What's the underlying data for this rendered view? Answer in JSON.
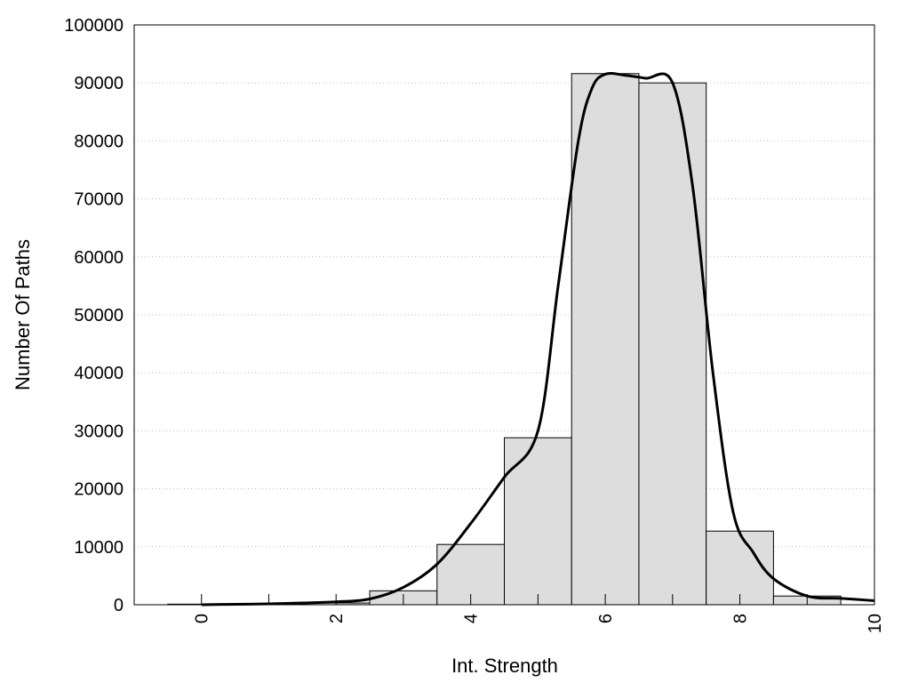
{
  "chart_data": {
    "type": "bar",
    "title": "",
    "xlabel": "Int. Strength",
    "ylabel": "Number Of Paths",
    "xlim": [
      -1,
      10
    ],
    "ylim": [
      0,
      100000
    ],
    "xticks": [
      "0",
      "2",
      "4",
      "6",
      "8",
      "10"
    ],
    "yticks": [
      "0",
      "10000",
      "20000",
      "30000",
      "40000",
      "50000",
      "60000",
      "70000",
      "80000",
      "90000",
      "100000"
    ],
    "grid": "horizontal-dotted",
    "legend": "none",
    "bars": {
      "bin_width": 1,
      "centers": [
        0,
        1,
        2,
        3,
        4,
        5,
        6,
        7,
        8,
        9
      ],
      "values": [
        100,
        150,
        300,
        2400,
        10400,
        28800,
        91600,
        90000,
        12700,
        1500
      ]
    },
    "curve": {
      "x": [
        0,
        0.5,
        1,
        1.5,
        2,
        2.5,
        3,
        3.5,
        4,
        4.5,
        5,
        5.3,
        5.6,
        5.8,
        6,
        6.3,
        6.6,
        7,
        7.3,
        7.6,
        7.9,
        8.2,
        8.5,
        9,
        9.5,
        10
      ],
      "y": [
        0,
        80,
        150,
        300,
        500,
        1000,
        3000,
        7000,
        14000,
        22000,
        30000,
        55000,
        80000,
        89000,
        91500,
        91300,
        90800,
        90000,
        72000,
        40000,
        16000,
        9000,
        4500,
        1500,
        1100,
        700
      ]
    },
    "colors": {
      "bar_fill": "#dddddd",
      "bar_stroke": "#000000",
      "curve": "#000000",
      "grid": "#bbbbbb"
    }
  }
}
